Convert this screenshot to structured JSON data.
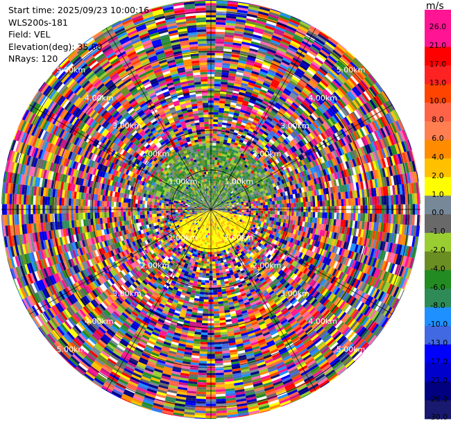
{
  "header": {
    "start_time": "Start time: 2025/09/23 10:00:16",
    "instrument": "WLS200s-181",
    "field": "Field: VEL",
    "elevation": "Elevation(deg): 35.00",
    "nrays": "NRays: 120"
  },
  "colorbar": {
    "unit": "m/s",
    "ticks": [
      "26.0",
      "21.0",
      "17.0",
      "13.0",
      "10.0",
      "8.0",
      "6.0",
      "4.0",
      "2.0",
      "1.0",
      "0.0",
      "-1.0",
      "-2.0",
      "-4.0",
      "-6.0",
      "-8.0",
      "-10.0",
      "-13.0",
      "-17.0",
      "-21.0",
      "-26.0",
      "-30.0"
    ],
    "colors": [
      "#ff1493",
      "#ff1493",
      "#ff0000",
      "#ff2222",
      "#ff4400",
      "#ff6347",
      "#ff7f50",
      "#ff8c00",
      "#ffc000",
      "#ffff00",
      "#778899",
      "#696969",
      "#9acd32",
      "#6b8e23",
      "#228b22",
      "#2e8b57",
      "#1e90ff",
      "#4169e1",
      "#0000ff",
      "#0000cd",
      "#000080",
      "#191970"
    ]
  },
  "chart_data": {
    "type": "heatmap",
    "title": "",
    "projection": "polar PPI",
    "field": "VEL",
    "unit": "m/s",
    "value_range": [
      -30,
      30
    ],
    "nrays": 120,
    "range_rings_km": [
      1.0,
      2.0,
      3.0,
      4.0,
      5.0
    ],
    "ring_labels": [
      "1.00km",
      "2.00km",
      "3.00km",
      "4.00km",
      "5.00km"
    ],
    "max_range_km": 5.3,
    "regions": [
      {
        "sector": "north, 0-1.6 km",
        "description": "coherent negative velocities",
        "values_m_s": [
          -1,
          -6
        ]
      },
      {
        "sector": "south, 0-1.5 km",
        "description": "coherent positive velocities",
        "values_m_s": [
          2,
          4
        ]
      },
      {
        "sector": "all, beyond ~2 km",
        "description": "noise / no coherent signal",
        "values_m_s": [
          -30,
          30
        ]
      }
    ]
  }
}
